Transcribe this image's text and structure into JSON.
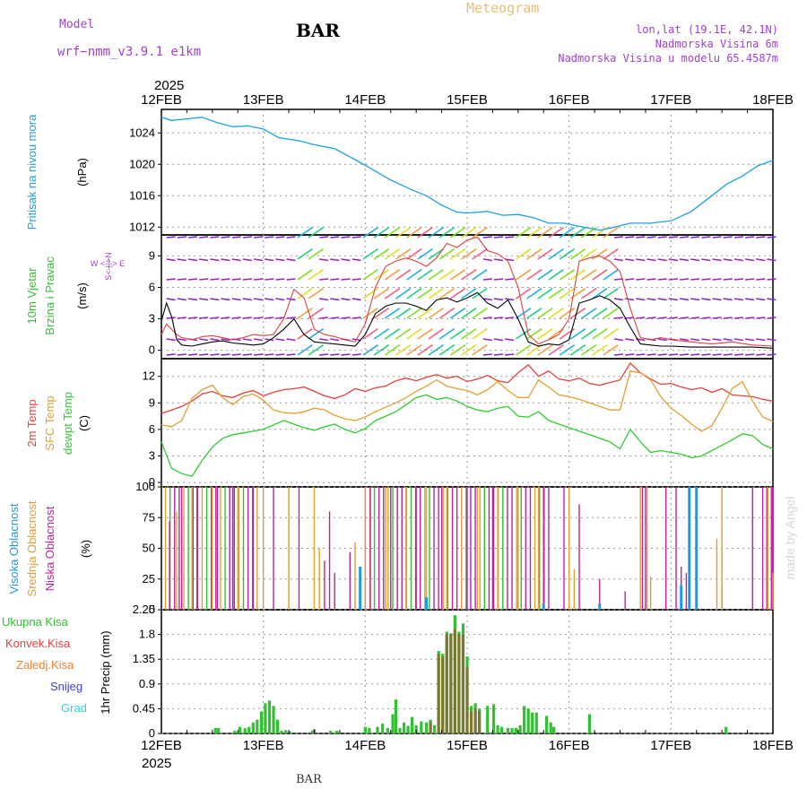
{
  "header": {
    "model_label": "Model",
    "model_name": "wrf−nmm_v3.9.1  e1km",
    "station": "BAR",
    "chart_title": "Meteogram",
    "location": "lon,lat (19.1E, 42.1N)",
    "elevation": "Nadmorska Visina 6m",
    "model_elevation": "Nadmorska Visina u modelu 65.4587m",
    "footer_station": "BAR",
    "watermark": "made by Angel",
    "year": "2025"
  },
  "colors": {
    "pressure": "#1ea0e0",
    "temp2m": "#e8403a",
    "sfc_temp": "#e0a030",
    "dewpt": "#30cc30",
    "high_cloud": "#1e9ae0",
    "mid_cloud": "#e0a030",
    "low_cloud": "#c020a0",
    "total_precip": "#30c030",
    "conv_precip": "#e04040",
    "freezing": "#f08030",
    "snow": "#4040e0",
    "hail": "#30d0d0",
    "wind_speed": "#000000",
    "wind_gust": "#e04040"
  },
  "chart_data": [
    {
      "type": "line",
      "panel": "pressure",
      "ylabel_main": "Pritisak na nivou mora",
      "ylabel_unit": "(hPa)",
      "ylim": [
        1011,
        1027
      ],
      "yticks": [
        1012,
        1016,
        1020,
        1024
      ],
      "x_days": [
        0,
        0.1,
        0.25,
        0.4,
        0.55,
        0.7,
        0.85,
        1.0,
        1.15,
        1.35,
        1.5,
        1.7,
        1.9,
        2.05,
        2.25,
        2.45,
        2.6,
        2.75,
        2.9,
        3.0,
        3.2,
        3.35,
        3.5,
        3.65,
        3.8,
        3.95,
        4.1,
        4.3,
        4.45,
        4.6,
        4.8,
        5.0,
        5.2,
        5.4,
        5.55,
        5.7,
        5.85,
        6.0
      ],
      "series": [
        {
          "values": [
            1026.0,
            1025.6,
            1025.8,
            1026.0,
            1025.3,
            1024.8,
            1024.9,
            1024.5,
            1023.4,
            1023.0,
            1022.5,
            1022.0,
            1020.6,
            1019.5,
            1018.0,
            1016.8,
            1016.0,
            1014.8,
            1013.9,
            1013.8,
            1014.0,
            1013.5,
            1013.6,
            1013.2,
            1012.5,
            1012.5,
            1012.1,
            1011.6,
            1012.0,
            1012.5,
            1012.5,
            1012.8,
            1014.0,
            1016.0,
            1017.5,
            1018.5,
            1019.8,
            1020.5
          ]
        }
      ]
    },
    {
      "type": "line",
      "panel": "wind",
      "ylabel_main": "10m Vjetar",
      "ylabel_main2": "Brzina i Pravac",
      "ylabel_unit": "(m/s)",
      "legend_compass": "W  <-|->  E",
      "legend_compass_vertical": "S<-|->N",
      "ylim": [
        -0.8,
        11
      ],
      "yticks": [
        0,
        3,
        6,
        9
      ],
      "x_days": [
        0,
        0.05,
        0.1,
        0.15,
        0.2,
        0.3,
        0.4,
        0.5,
        0.6,
        0.7,
        0.8,
        0.9,
        1.0,
        1.1,
        1.2,
        1.3,
        1.4,
        1.5,
        1.6,
        1.7,
        1.8,
        1.9,
        2.0,
        2.1,
        2.2,
        2.3,
        2.4,
        2.5,
        2.6,
        2.7,
        2.8,
        2.9,
        3.0,
        3.1,
        3.2,
        3.3,
        3.4,
        3.5,
        3.6,
        3.7,
        3.8,
        3.9,
        4.0,
        4.1,
        4.2,
        4.3,
        4.4,
        4.5,
        4.6,
        4.7,
        4.8,
        4.9,
        5.0,
        5.2,
        5.4,
        5.6,
        5.8,
        6.0
      ],
      "series": [
        {
          "values": [
            2.8,
            4.5,
            3.2,
            1.0,
            0.5,
            0.4,
            0.6,
            0.8,
            0.9,
            0.7,
            0.6,
            0.5,
            0.6,
            1.2,
            2.0,
            3.0,
            1.5,
            0.8,
            0.7,
            0.6,
            0.5,
            0.4,
            1.5,
            3.5,
            4.2,
            4.5,
            4.5,
            4.2,
            3.8,
            4.8,
            5.0,
            4.6,
            5.0,
            5.5,
            4.5,
            4.0,
            4.8,
            3.0,
            0.8,
            0.4,
            0.6,
            0.5,
            1.0,
            4.5,
            4.8,
            5.2,
            4.8,
            4.0,
            2.2,
            0.6,
            0.5,
            0.4,
            0.4,
            0.3,
            0.3,
            0.3,
            0.3,
            0.2
          ]
        },
        {
          "values": [
            1.5,
            2.5,
            2.0,
            1.5,
            1.2,
            1.0,
            1.3,
            1.4,
            1.2,
            1.0,
            1.2,
            1.5,
            1.4,
            1.5,
            3.0,
            5.8,
            5.0,
            2.0,
            1.5,
            1.3,
            1.0,
            0.8,
            2.5,
            6.0,
            8.0,
            8.5,
            8.8,
            8.5,
            8.0,
            8.8,
            10.2,
            9.8,
            10.5,
            10.8,
            9.5,
            9.2,
            8.5,
            6.0,
            1.5,
            0.6,
            1.0,
            1.5,
            3.0,
            8.5,
            8.8,
            9.0,
            8.5,
            7.5,
            4.0,
            1.2,
            1.0,
            1.2,
            1.0,
            0.8,
            0.6,
            0.8,
            0.5,
            0.4
          ]
        }
      ]
    },
    {
      "type": "line",
      "panel": "temperature",
      "ylabel_lines": [
        "2m Temp",
        "SFC Temp",
        "dewpt Temp"
      ],
      "ylabel_unit": "(C)",
      "ylim": [
        -0.5,
        14
      ],
      "yticks": [
        0,
        3,
        6,
        9,
        12
      ],
      "x_days": [
        0,
        0.1,
        0.2,
        0.3,
        0.4,
        0.5,
        0.6,
        0.7,
        0.8,
        0.9,
        1.0,
        1.1,
        1.2,
        1.3,
        1.4,
        1.5,
        1.6,
        1.7,
        1.8,
        1.9,
        2.0,
        2.1,
        2.2,
        2.3,
        2.4,
        2.5,
        2.6,
        2.7,
        2.8,
        2.9,
        3.0,
        3.1,
        3.2,
        3.3,
        3.4,
        3.5,
        3.6,
        3.7,
        3.8,
        3.9,
        4.0,
        4.1,
        4.2,
        4.3,
        4.4,
        4.5,
        4.6,
        4.7,
        4.8,
        4.9,
        5.0,
        5.1,
        5.2,
        5.3,
        5.4,
        5.5,
        5.6,
        5.7,
        5.8,
        5.9,
        6.0
      ],
      "series": [
        {
          "name": "2m Temp",
          "values": [
            7.8,
            8.2,
            8.6,
            9.2,
            10.0,
            10.3,
            9.8,
            9.6,
            10.1,
            10.4,
            9.8,
            10.2,
            10.5,
            10.6,
            10.8,
            10.3,
            9.8,
            9.5,
            9.9,
            10.6,
            10.3,
            10.7,
            10.9,
            11.5,
            11.8,
            11.5,
            11.9,
            12.2,
            11.8,
            12.0,
            11.4,
            11.7,
            12.1,
            11.5,
            11.3,
            12.4,
            13.3,
            12.0,
            12.6,
            11.7,
            11.5,
            11.8,
            11.2,
            11.0,
            11.3,
            11.6,
            13.5,
            12.4,
            11.7,
            11.1,
            11.2,
            10.8,
            10.5,
            10.7,
            10.2,
            10.6,
            9.9,
            9.8,
            9.7,
            9.4,
            9.2
          ]
        },
        {
          "name": "SFC Temp",
          "values": [
            6.5,
            6.3,
            7.0,
            9.5,
            10.5,
            11.0,
            9.6,
            8.8,
            9.7,
            10.0,
            9.3,
            8.2,
            7.9,
            7.8,
            8.0,
            8.4,
            8.2,
            7.6,
            7.2,
            7.0,
            7.4,
            8.0,
            8.5,
            9.0,
            9.6,
            10.3,
            10.9,
            11.6,
            10.9,
            10.6,
            10.4,
            9.9,
            10.5,
            11.4,
            10.4,
            9.6,
            9.6,
            11.6,
            10.8,
            9.9,
            9.7,
            9.4,
            9.0,
            8.6,
            8.2,
            8.2,
            12.6,
            12.4,
            11.6,
            9.7,
            8.4,
            7.6,
            6.6,
            5.8,
            6.4,
            8.4,
            10.6,
            11.4,
            9.2,
            7.4,
            6.9
          ]
        },
        {
          "name": "dewpt Temp",
          "values": [
            4.6,
            1.6,
            1.0,
            0.7,
            2.5,
            4.0,
            5.0,
            5.4,
            5.6,
            5.8,
            6.0,
            6.5,
            7.0,
            6.6,
            6.2,
            5.9,
            6.3,
            6.6,
            6.0,
            5.6,
            6.1,
            7.0,
            7.5,
            8.0,
            8.8,
            9.6,
            9.9,
            9.4,
            9.6,
            9.2,
            8.6,
            8.2,
            8.0,
            8.4,
            8.6,
            7.5,
            7.4,
            8.0,
            7.0,
            6.6,
            6.2,
            5.8,
            5.4,
            5.0,
            4.6,
            3.8,
            6.0,
            4.6,
            3.4,
            3.6,
            3.4,
            3.2,
            2.8,
            3.0,
            3.6,
            4.2,
            4.8,
            5.5,
            5.3,
            4.3,
            3.8
          ]
        }
      ]
    },
    {
      "type": "bar",
      "panel": "cloud",
      "ylabel_lines": [
        "Visoka Oblacnost",
        "Srednja Oblacnost",
        "Niska Oblacnost"
      ],
      "ylabel_unit": "(%)",
      "ylim": [
        0,
        100
      ],
      "yticks": [
        0,
        25,
        50,
        75,
        100
      ],
      "series": [
        {
          "name": "Niska Oblacnost",
          "x_days": [
            0.08,
            0.2,
            0.35,
            0.55,
            0.7,
            0.9,
            1.1,
            1.35,
            1.6,
            1.65,
            1.7,
            1.85,
            2.05,
            2.25,
            2.5,
            2.75,
            3.0,
            3.25,
            3.5,
            3.75,
            3.95,
            4.1,
            4.3,
            4.55,
            4.75,
            4.95,
            5.05,
            5.1,
            5.15,
            5.5,
            5.8,
            5.9,
            6.0
          ],
          "values": [
            72,
            100,
            100,
            100,
            100,
            100,
            100,
            100,
            40,
            80,
            30,
            47,
            100,
            100,
            100,
            100,
            100,
            100,
            100,
            100,
            100,
            86,
            25,
            15,
            100,
            100,
            100,
            35,
            30,
            20,
            100,
            100,
            100
          ]
        },
        {
          "name": "Srednja Oblacnost",
          "x_days": [
            0.15,
            0.3,
            0.5,
            0.75,
            1.0,
            1.25,
            1.5,
            1.55,
            1.9,
            2.0,
            2.2,
            2.4,
            2.6,
            2.8,
            3.1,
            3.3,
            3.5,
            3.7,
            4.0,
            4.05,
            4.7,
            4.8,
            5.45,
            5.5,
            5.95,
            6.0
          ],
          "values": [
            80,
            100,
            100,
            100,
            100,
            100,
            100,
            50,
            55,
            100,
            100,
            100,
            100,
            100,
            100,
            100,
            100,
            100,
            100,
            33,
            100,
            27,
            58,
            100,
            100,
            30
          ]
        },
        {
          "name": "Visoka Oblacnost",
          "x_days": [
            1.95,
            2.6,
            3.75,
            4.3,
            5.18,
            5.25,
            5.1
          ],
          "values": [
            35,
            10,
            5,
            5,
            100,
            100,
            20
          ]
        }
      ]
    },
    {
      "type": "bar",
      "panel": "precip",
      "ylabel_main": "1hr Precip",
      "ylabel_unit": "(mm)",
      "ylim": [
        0,
        2.25
      ],
      "yticks": [
        0,
        0.45,
        0.9,
        1.35,
        1.8,
        2.25
      ],
      "ytick_labels": [
        "0",
        "0.45",
        "0.9",
        "1.35",
        "1.8",
        "2.25"
      ],
      "legend": [
        "Ukupna Kisa",
        "Konvek.Kisa",
        "Zaledj.Kisa",
        "Snijeg",
        "Grad"
      ],
      "x_days": [
        0.53,
        0.56,
        0.72,
        0.77,
        0.82,
        0.86,
        0.9,
        0.94,
        0.98,
        1.02,
        1.06,
        1.1,
        1.14,
        1.18,
        1.22,
        1.26,
        1.48,
        1.5,
        1.66,
        1.72,
        2.0,
        2.04,
        2.12,
        2.17,
        2.22,
        2.27,
        2.3,
        2.34,
        2.38,
        2.42,
        2.46,
        2.5,
        2.55,
        2.6,
        2.64,
        2.68,
        2.72,
        2.76,
        2.8,
        2.84,
        2.88,
        2.92,
        2.96,
        3.0,
        3.04,
        3.08,
        3.12,
        3.2,
        3.26,
        3.3,
        3.34,
        3.4,
        3.44,
        3.48,
        3.52,
        3.56,
        3.6,
        3.64,
        3.68,
        3.78,
        3.82,
        3.85,
        4.2,
        5.54
      ],
      "series": [
        {
          "name": "Ukupna Kisa",
          "values": [
            0.1,
            0.1,
            0.05,
            0.12,
            0.1,
            0.12,
            0.2,
            0.25,
            0.4,
            0.55,
            0.6,
            0.5,
            0.25,
            0.05,
            0.06,
            0.04,
            0.05,
            0.08,
            0.05,
            0.05,
            0.12,
            0.1,
            0.12,
            0.18,
            0.1,
            0.35,
            0.62,
            0.1,
            0.2,
            0.14,
            0.3,
            0.15,
            0.22,
            0.2,
            0.25,
            0.15,
            1.5,
            1.45,
            1.85,
            1.82,
            2.15,
            1.85,
            2.0,
            1.4,
            0.5,
            0.55,
            0.45,
            0.5,
            0.53,
            0.15,
            0.12,
            0.1,
            0.1,
            0.1,
            0.15,
            0.5,
            0.45,
            0.38,
            0.38,
            0.32,
            0.2,
            0.12,
            0.35,
            0.12
          ]
        },
        {
          "name": "Konvek.Kisa",
          "values": [
            0,
            0,
            0,
            0,
            0,
            0,
            0,
            0,
            0,
            0,
            0,
            0,
            0,
            0,
            0,
            0,
            0,
            0,
            0,
            0,
            0,
            0,
            0,
            0,
            0,
            0,
            0,
            0,
            0,
            0,
            0,
            0,
            0,
            0,
            0.2,
            0,
            1.45,
            1.4,
            1.8,
            1.8,
            1.9,
            1.8,
            1.8,
            1.2,
            0.4,
            0.45,
            0.4,
            0,
            0,
            0,
            0,
            0,
            0,
            0,
            0,
            0,
            0,
            0,
            0,
            0,
            0,
            0,
            0,
            0
          ]
        }
      ]
    }
  ],
  "x_axis": {
    "start_label": "12FEB",
    "days": [
      "12FEB",
      "13FEB",
      "14FEB",
      "15FEB",
      "16FEB",
      "17FEB",
      "18FEB"
    ],
    "year": "2025"
  }
}
